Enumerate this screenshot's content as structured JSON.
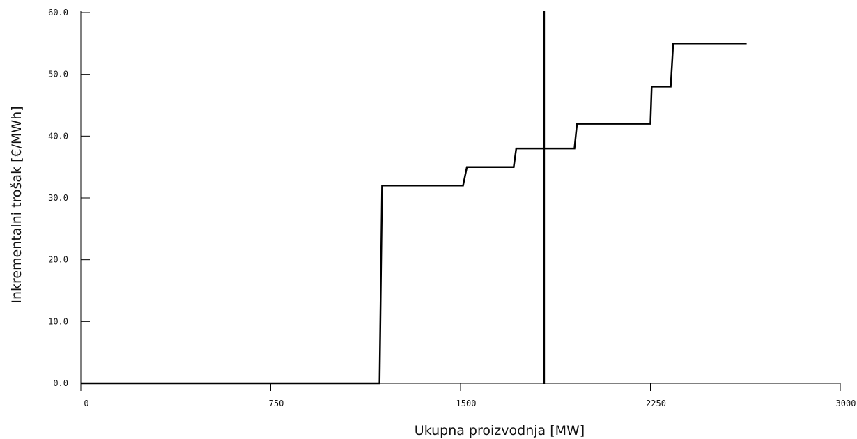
{
  "chart_data": {
    "type": "line",
    "title": "",
    "xlabel": "Ukupna proizvodnja [MW]",
    "ylabel": "Inkrementalni trošak [€/MWh]",
    "xlim": [
      0,
      3000
    ],
    "ylim": [
      0,
      60
    ],
    "x_ticks": [
      0,
      750,
      1500,
      2250,
      3000
    ],
    "x_tick_labels": [
      "0",
      "750",
      "1500",
      "2250",
      "3000"
    ],
    "y_ticks": [
      0,
      10,
      20,
      30,
      40,
      50,
      60
    ],
    "y_tick_labels": [
      "0.0",
      "10.0",
      "20.0",
      "30.0",
      "40.0",
      "50.0",
      "60.0"
    ],
    "grid": false,
    "series": [
      {
        "x": [
          0,
          1180,
          1190,
          1510,
          1525,
          1710,
          1720,
          1950,
          1960,
          2250,
          2255,
          2330,
          2340,
          2630
        ],
        "y": [
          0,
          0,
          32,
          32,
          35,
          35,
          38,
          38,
          42,
          42,
          48,
          48,
          55,
          55
        ]
      }
    ],
    "vertical_marker_x": 1830,
    "colors": {
      "line": "#000000",
      "background": "#ffffff"
    }
  }
}
